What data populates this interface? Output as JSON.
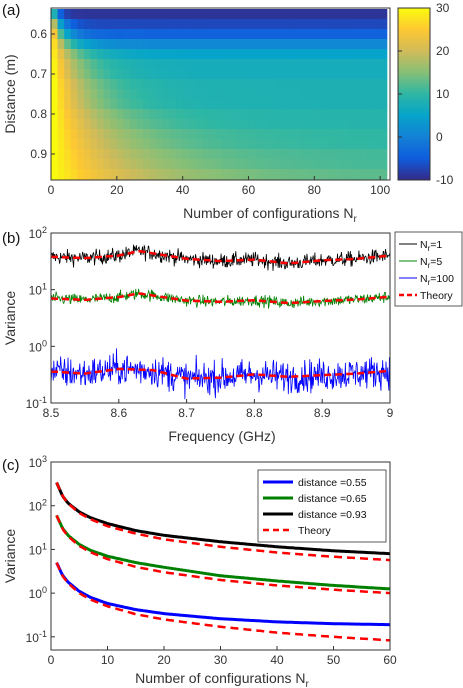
{
  "chart_data": [
    {
      "panel_label": "(a)",
      "type": "heatmap",
      "xlabel": "Number of configurations N",
      "xlabel_sub": "r",
      "ylabel": "Distance (m)",
      "xlim": [
        0,
        103
      ],
      "ylim": [
        0.535,
        0.965
      ],
      "x_ticks": [
        0,
        20,
        40,
        60,
        80,
        100
      ],
      "y_ticks": [
        0.6,
        0.7,
        0.8,
        0.9
      ],
      "colorbar": {
        "min": -10,
        "max": 30,
        "ticks": [
          -10,
          0,
          10,
          20,
          30
        ]
      },
      "rows": {
        "distances": [
          0.55,
          0.575,
          0.6,
          0.625,
          0.65,
          0.675,
          0.7,
          0.725,
          0.75,
          0.775,
          0.8,
          0.825,
          0.85,
          0.875,
          0.9,
          0.925,
          0.95
        ],
        "floor": [
          -9,
          -7,
          -4,
          1,
          5,
          7,
          7,
          8,
          8,
          8,
          9,
          9,
          10,
          10,
          11,
          11,
          12
        ],
        "peak": [
          8,
          18,
          24,
          27,
          28,
          29,
          29,
          30,
          30,
          30,
          30,
          30,
          30,
          30,
          30,
          30,
          30
        ],
        "decay_width": [
          1.5,
          2.5,
          3.5,
          5,
          7,
          8,
          9,
          10,
          11,
          12,
          14,
          16,
          18,
          20,
          22,
          25,
          28
        ]
      }
    },
    {
      "panel_label": "(b)",
      "type": "line",
      "xlabel": "Frequency (GHz)",
      "ylabel": "Variance",
      "xlim": [
        8.5,
        9
      ],
      "ylim": [
        0.1,
        100
      ],
      "yscale": "log",
      "x_ticks": [
        "8.5",
        "8.6",
        "8.7",
        "8.8",
        "8.9",
        "9"
      ],
      "y_ticks": [
        0.1,
        1,
        10,
        100
      ],
      "legend_position": "outside-right",
      "series": [
        {
          "name": "N",
          "name_sub": "r",
          "name_suffix": "=1",
          "color": "#000000",
          "level": 38,
          "log_noise": 0.13
        },
        {
          "name": "N",
          "name_sub": "r",
          "name_suffix": "=5",
          "color": "#008000",
          "level": 7,
          "log_noise": 0.1
        },
        {
          "name": "N",
          "name_sub": "r",
          "name_suffix": "=100",
          "color": "#0000ff",
          "level": 0.38,
          "log_noise": 0.28
        },
        {
          "name": "Theory",
          "color": "#ff0000",
          "dashed": true,
          "values": [
            {
              "level": 38,
              "x": [
                8.5,
                8.55,
                8.6,
                8.63,
                8.7,
                8.75,
                8.8,
                8.85,
                8.9,
                8.95,
                9.0
              ],
              "y": [
                38,
                36,
                40,
                48,
                35,
                32,
                34,
                29,
                33,
                35,
                40
              ]
            },
            {
              "level": 7,
              "x": [
                8.5,
                8.55,
                8.6,
                8.63,
                8.7,
                8.75,
                8.8,
                8.85,
                8.9,
                8.95,
                9.0
              ],
              "y": [
                7,
                6.6,
                7.4,
                8.6,
                6.4,
                6.1,
                6.5,
                5.8,
                6.3,
                6.7,
                7.5
              ]
            },
            {
              "level": 0.38,
              "x": [
                8.5,
                8.55,
                8.6,
                8.65,
                8.7,
                8.75,
                8.8,
                8.85,
                8.9,
                8.95,
                9.0
              ],
              "y": [
                0.36,
                0.33,
                0.4,
                0.38,
                0.27,
                0.28,
                0.32,
                0.29,
                0.31,
                0.33,
                0.37
              ]
            }
          ]
        }
      ]
    },
    {
      "panel_label": "(c)",
      "type": "line",
      "xlabel": "Number of configurations N",
      "xlabel_sub": "r",
      "ylabel": "Variance",
      "xlim": [
        0,
        60
      ],
      "ylim": [
        0.05,
        1000
      ],
      "yscale": "log",
      "x_ticks": [
        0,
        10,
        20,
        30,
        40,
        50,
        60
      ],
      "y_ticks": [
        0.1,
        1,
        10,
        100,
        1000
      ],
      "legend_position": "top-right",
      "x": [
        1,
        2,
        3,
        5,
        7,
        10,
        15,
        20,
        30,
        40,
        50,
        60
      ],
      "series": [
        {
          "name": "distance =0.55",
          "color": "#0000ff",
          "values": [
            5,
            2.6,
            1.8,
            1.1,
            0.8,
            0.58,
            0.42,
            0.34,
            0.26,
            0.22,
            0.2,
            0.19
          ]
        },
        {
          "name": "distance =0.65",
          "color": "#008000",
          "values": [
            60,
            31,
            21,
            13,
            9.5,
            7,
            5,
            3.9,
            2.5,
            1.9,
            1.5,
            1.25
          ]
        },
        {
          "name": "distance =0.93",
          "color": "#000000",
          "values": [
            340,
            170,
            115,
            72,
            53,
            39,
            27,
            21,
            15,
            11.5,
            9.3,
            8
          ]
        },
        {
          "name": "Theory",
          "color": "#ff0000",
          "dashed": true,
          "lines": [
            [
              5,
              2.5,
              1.7,
              1.0,
              0.71,
              0.5,
              0.33,
              0.25,
              0.17,
              0.125,
              0.1,
              0.083
            ],
            [
              60,
              30,
              20,
              12,
              8.6,
              6,
              4,
              3,
              2,
              1.5,
              1.2,
              1.0
            ],
            [
              340,
              170,
              113,
              68,
              49,
              34,
              23,
              17,
              11.5,
              8.5,
              6.8,
              5.7
            ]
          ]
        }
      ]
    }
  ]
}
